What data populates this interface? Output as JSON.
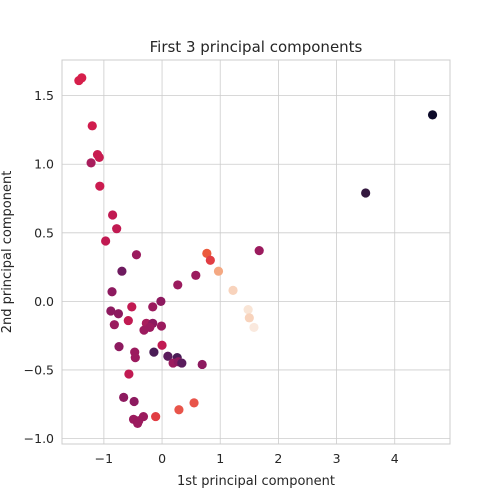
{
  "chart_data": {
    "type": "scatter",
    "title": "First 3 principal components",
    "xlabel": "1st principal component",
    "ylabel": "2nd principal component",
    "xlim": [
      -1.72,
      4.95
    ],
    "ylim": [
      -1.04,
      1.76
    ],
    "xticks": [
      -1,
      0,
      1,
      2,
      3,
      4
    ],
    "yticks": [
      -1.0,
      -0.5,
      0.0,
      0.5,
      1.0,
      1.5
    ],
    "xtick_labels": [
      "−1",
      "0",
      "1",
      "2",
      "3",
      "4"
    ],
    "ytick_labels": [
      "−1.0",
      "−0.5",
      "0.0",
      "0.5",
      "1.0",
      "1.5"
    ],
    "grid": true,
    "color_encoding": "3rd principal component (dark = low, light = high)",
    "points": [
      {
        "x": 4.65,
        "y": 1.36,
        "color": "#0d0a29"
      },
      {
        "x": 3.5,
        "y": 0.79,
        "color": "#34183f"
      },
      {
        "x": -1.43,
        "y": 1.61,
        "color": "#d61f4b"
      },
      {
        "x": -1.38,
        "y": 1.63,
        "color": "#d61f4b"
      },
      {
        "x": -1.2,
        "y": 1.28,
        "color": "#d01c4d"
      },
      {
        "x": -1.11,
        "y": 1.07,
        "color": "#c81c50"
      },
      {
        "x": -1.08,
        "y": 1.05,
        "color": "#c81c50"
      },
      {
        "x": -1.22,
        "y": 1.01,
        "color": "#a81d5c"
      },
      {
        "x": -1.07,
        "y": 0.84,
        "color": "#cb1b4f"
      },
      {
        "x": -0.85,
        "y": 0.63,
        "color": "#c11a52"
      },
      {
        "x": -0.78,
        "y": 0.53,
        "color": "#c11a52"
      },
      {
        "x": -0.97,
        "y": 0.44,
        "color": "#c11a52"
      },
      {
        "x": -0.44,
        "y": 0.34,
        "color": "#9b1b5e"
      },
      {
        "x": -0.69,
        "y": 0.22,
        "color": "#6e1a5f"
      },
      {
        "x": -0.86,
        "y": 0.07,
        "color": "#8d1a5f"
      },
      {
        "x": 0.77,
        "y": 0.35,
        "color": "#eb5a3c"
      },
      {
        "x": 0.83,
        "y": 0.3,
        "color": "#e13d43"
      },
      {
        "x": 1.67,
        "y": 0.37,
        "color": "#9b1b5e"
      },
      {
        "x": 0.58,
        "y": 0.19,
        "color": "#9b1b5e"
      },
      {
        "x": 0.97,
        "y": 0.22,
        "color": "#f4a882"
      },
      {
        "x": 0.27,
        "y": 0.12,
        "color": "#9b1b5e"
      },
      {
        "x": 1.22,
        "y": 0.08,
        "color": "#f8d3bc"
      },
      {
        "x": -0.02,
        "y": 0.0,
        "color": "#8d1a5f"
      },
      {
        "x": -0.16,
        "y": -0.04,
        "color": "#9b1b5e"
      },
      {
        "x": -0.52,
        "y": -0.04,
        "color": "#c11a52"
      },
      {
        "x": 1.48,
        "y": -0.06,
        "color": "#f9e5d6"
      },
      {
        "x": -0.88,
        "y": -0.07,
        "color": "#8d1a5f"
      },
      {
        "x": -0.75,
        "y": -0.09,
        "color": "#8d1a5f"
      },
      {
        "x": 1.5,
        "y": -0.12,
        "color": "#f8d3bc"
      },
      {
        "x": -0.58,
        "y": -0.14,
        "color": "#c11a52"
      },
      {
        "x": -0.82,
        "y": -0.17,
        "color": "#9b1b5e"
      },
      {
        "x": -0.27,
        "y": -0.16,
        "color": "#a81d5c"
      },
      {
        "x": -0.16,
        "y": -0.16,
        "color": "#8d1a5f"
      },
      {
        "x": -0.21,
        "y": -0.19,
        "color": "#9b1b5e"
      },
      {
        "x": -0.01,
        "y": -0.18,
        "color": "#9b1b5e"
      },
      {
        "x": -0.31,
        "y": -0.21,
        "color": "#9b1b5e"
      },
      {
        "x": 1.58,
        "y": -0.19,
        "color": "#fae9de"
      },
      {
        "x": -0.74,
        "y": -0.33,
        "color": "#8d1a5f"
      },
      {
        "x": 0.0,
        "y": -0.32,
        "color": "#c11a52"
      },
      {
        "x": -0.47,
        "y": -0.37,
        "color": "#9b1b5e"
      },
      {
        "x": -0.14,
        "y": -0.37,
        "color": "#4a1c56"
      },
      {
        "x": -0.46,
        "y": -0.41,
        "color": "#9b1b5e"
      },
      {
        "x": 0.1,
        "y": -0.4,
        "color": "#5a1c5c"
      },
      {
        "x": 0.26,
        "y": -0.41,
        "color": "#4a1c56"
      },
      {
        "x": 0.19,
        "y": -0.45,
        "color": "#9b1b5e"
      },
      {
        "x": 0.28,
        "y": -0.44,
        "color": "#8d1a5f"
      },
      {
        "x": 0.34,
        "y": -0.45,
        "color": "#5a1c5c"
      },
      {
        "x": 0.69,
        "y": -0.46,
        "color": "#8d1a5f"
      },
      {
        "x": -0.57,
        "y": -0.53,
        "color": "#c11a52"
      },
      {
        "x": -0.66,
        "y": -0.7,
        "color": "#8d1a5f"
      },
      {
        "x": -0.48,
        "y": -0.73,
        "color": "#8d1a5f"
      },
      {
        "x": 0.55,
        "y": -0.74,
        "color": "#e8544a"
      },
      {
        "x": 0.29,
        "y": -0.79,
        "color": "#e8544a"
      },
      {
        "x": -0.32,
        "y": -0.84,
        "color": "#9b1b5e"
      },
      {
        "x": -0.11,
        "y": -0.84,
        "color": "#e13d43"
      },
      {
        "x": -0.49,
        "y": -0.86,
        "color": "#9b1b5e"
      },
      {
        "x": -0.4,
        "y": -0.87,
        "color": "#9b1b5e"
      },
      {
        "x": -0.42,
        "y": -0.89,
        "color": "#9b1b5e"
      }
    ]
  }
}
